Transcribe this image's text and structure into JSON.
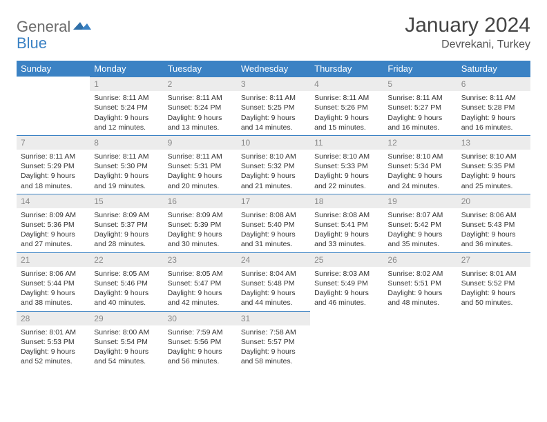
{
  "logo": {
    "text1": "General",
    "text2": "Blue"
  },
  "title": "January 2024",
  "location": "Devrekani, Turkey",
  "colors": {
    "header_bg": "#3b82c4",
    "header_text": "#ffffff",
    "daynum_bg": "#ececec",
    "daynum_text": "#888888",
    "border": "#3b82c4",
    "body_text": "#333333",
    "logo_gray": "#6b6b6b",
    "logo_blue": "#3b82c4"
  },
  "weekdays": [
    "Sunday",
    "Monday",
    "Tuesday",
    "Wednesday",
    "Thursday",
    "Friday",
    "Saturday"
  ],
  "weeks": [
    [
      null,
      {
        "n": "1",
        "sr": "8:11 AM",
        "ss": "5:24 PM",
        "dl": "9 hours and 12 minutes."
      },
      {
        "n": "2",
        "sr": "8:11 AM",
        "ss": "5:24 PM",
        "dl": "9 hours and 13 minutes."
      },
      {
        "n": "3",
        "sr": "8:11 AM",
        "ss": "5:25 PM",
        "dl": "9 hours and 14 minutes."
      },
      {
        "n": "4",
        "sr": "8:11 AM",
        "ss": "5:26 PM",
        "dl": "9 hours and 15 minutes."
      },
      {
        "n": "5",
        "sr": "8:11 AM",
        "ss": "5:27 PM",
        "dl": "9 hours and 16 minutes."
      },
      {
        "n": "6",
        "sr": "8:11 AM",
        "ss": "5:28 PM",
        "dl": "9 hours and 16 minutes."
      }
    ],
    [
      {
        "n": "7",
        "sr": "8:11 AM",
        "ss": "5:29 PM",
        "dl": "9 hours and 18 minutes."
      },
      {
        "n": "8",
        "sr": "8:11 AM",
        "ss": "5:30 PM",
        "dl": "9 hours and 19 minutes."
      },
      {
        "n": "9",
        "sr": "8:11 AM",
        "ss": "5:31 PM",
        "dl": "9 hours and 20 minutes."
      },
      {
        "n": "10",
        "sr": "8:10 AM",
        "ss": "5:32 PM",
        "dl": "9 hours and 21 minutes."
      },
      {
        "n": "11",
        "sr": "8:10 AM",
        "ss": "5:33 PM",
        "dl": "9 hours and 22 minutes."
      },
      {
        "n": "12",
        "sr": "8:10 AM",
        "ss": "5:34 PM",
        "dl": "9 hours and 24 minutes."
      },
      {
        "n": "13",
        "sr": "8:10 AM",
        "ss": "5:35 PM",
        "dl": "9 hours and 25 minutes."
      }
    ],
    [
      {
        "n": "14",
        "sr": "8:09 AM",
        "ss": "5:36 PM",
        "dl": "9 hours and 27 minutes."
      },
      {
        "n": "15",
        "sr": "8:09 AM",
        "ss": "5:37 PM",
        "dl": "9 hours and 28 minutes."
      },
      {
        "n": "16",
        "sr": "8:09 AM",
        "ss": "5:39 PM",
        "dl": "9 hours and 30 minutes."
      },
      {
        "n": "17",
        "sr": "8:08 AM",
        "ss": "5:40 PM",
        "dl": "9 hours and 31 minutes."
      },
      {
        "n": "18",
        "sr": "8:08 AM",
        "ss": "5:41 PM",
        "dl": "9 hours and 33 minutes."
      },
      {
        "n": "19",
        "sr": "8:07 AM",
        "ss": "5:42 PM",
        "dl": "9 hours and 35 minutes."
      },
      {
        "n": "20",
        "sr": "8:06 AM",
        "ss": "5:43 PM",
        "dl": "9 hours and 36 minutes."
      }
    ],
    [
      {
        "n": "21",
        "sr": "8:06 AM",
        "ss": "5:44 PM",
        "dl": "9 hours and 38 minutes."
      },
      {
        "n": "22",
        "sr": "8:05 AM",
        "ss": "5:46 PM",
        "dl": "9 hours and 40 minutes."
      },
      {
        "n": "23",
        "sr": "8:05 AM",
        "ss": "5:47 PM",
        "dl": "9 hours and 42 minutes."
      },
      {
        "n": "24",
        "sr": "8:04 AM",
        "ss": "5:48 PM",
        "dl": "9 hours and 44 minutes."
      },
      {
        "n": "25",
        "sr": "8:03 AM",
        "ss": "5:49 PM",
        "dl": "9 hours and 46 minutes."
      },
      {
        "n": "26",
        "sr": "8:02 AM",
        "ss": "5:51 PM",
        "dl": "9 hours and 48 minutes."
      },
      {
        "n": "27",
        "sr": "8:01 AM",
        "ss": "5:52 PM",
        "dl": "9 hours and 50 minutes."
      }
    ],
    [
      {
        "n": "28",
        "sr": "8:01 AM",
        "ss": "5:53 PM",
        "dl": "9 hours and 52 minutes."
      },
      {
        "n": "29",
        "sr": "8:00 AM",
        "ss": "5:54 PM",
        "dl": "9 hours and 54 minutes."
      },
      {
        "n": "30",
        "sr": "7:59 AM",
        "ss": "5:56 PM",
        "dl": "9 hours and 56 minutes."
      },
      {
        "n": "31",
        "sr": "7:58 AM",
        "ss": "5:57 PM",
        "dl": "9 hours and 58 minutes."
      },
      null,
      null,
      null
    ]
  ],
  "labels": {
    "sunrise": "Sunrise: ",
    "sunset": "Sunset: ",
    "daylight": "Daylight: "
  }
}
